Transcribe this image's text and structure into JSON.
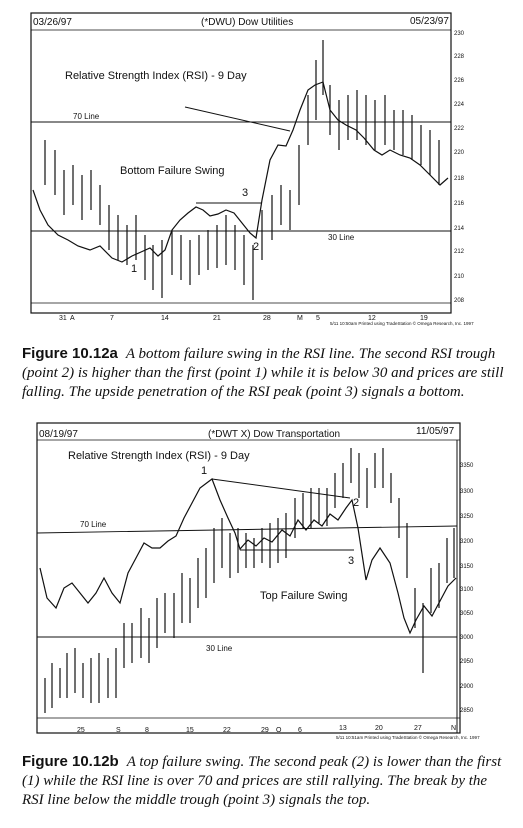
{
  "figure_a": {
    "start_date": "03/26/97",
    "end_date": "05/23/97",
    "symbol_title": "(*DWU) Dow Utilities",
    "rsi_label": "Relative Strength Index (RSI) - 9 Day",
    "line70_label": "70 Line",
    "line30_label": "30 Line",
    "swing_label": "Bottom Failure Swing",
    "points": [
      "1",
      "2",
      "3"
    ],
    "price_ticks": [
      "230",
      "228",
      "226",
      "224",
      "222",
      "220",
      "218",
      "216",
      "214",
      "212",
      "210",
      "208"
    ],
    "date_ticks": [
      "31",
      "A",
      "7",
      "14",
      "21",
      "28",
      "M",
      "5",
      "12",
      "19"
    ],
    "footer": "5/11 10:50am Printed using TradeStation © Omega Research, Inc. 1997",
    "caption_label": "Figure 10.12a",
    "caption_text": "A bottom failure swing in the RSI line. The second RSI trough (point 2) is higher than the first (point 1) while it is below 30 and prices are still falling. The upside penetration of the RSI peak (point 3) signals a bottom."
  },
  "figure_b": {
    "start_date": "08/19/97",
    "end_date": "11/05/97",
    "symbol_title": "(*DWT X) Dow Transportation",
    "rsi_label": "Relative Strength Index (RSI) - 9 Day",
    "line70_label": "70 Line",
    "line30_label": "30 Line",
    "swing_label": "Top Failure Swing",
    "points": [
      "1",
      "2",
      "3"
    ],
    "price_ticks": [
      "3350",
      "3300",
      "3250",
      "3200",
      "3150",
      "3100",
      "3050",
      "3000",
      "2950",
      "2900",
      "2850"
    ],
    "date_ticks": [
      "25",
      "S",
      "8",
      "15",
      "22",
      "29",
      "O",
      "6",
      "13",
      "20",
      "27",
      "N"
    ],
    "footer": "5/11 10:51am Printed using TradeStation © Omega Research, Inc. 1997",
    "caption_label": "Figure 10.12b",
    "caption_text": "A top failure swing. The second peak (2) is lower than the first (1) while the RSI line is over 70 and prices are still rallying. The break by the RSI line below the middle trough (point 3) signals the top."
  }
}
